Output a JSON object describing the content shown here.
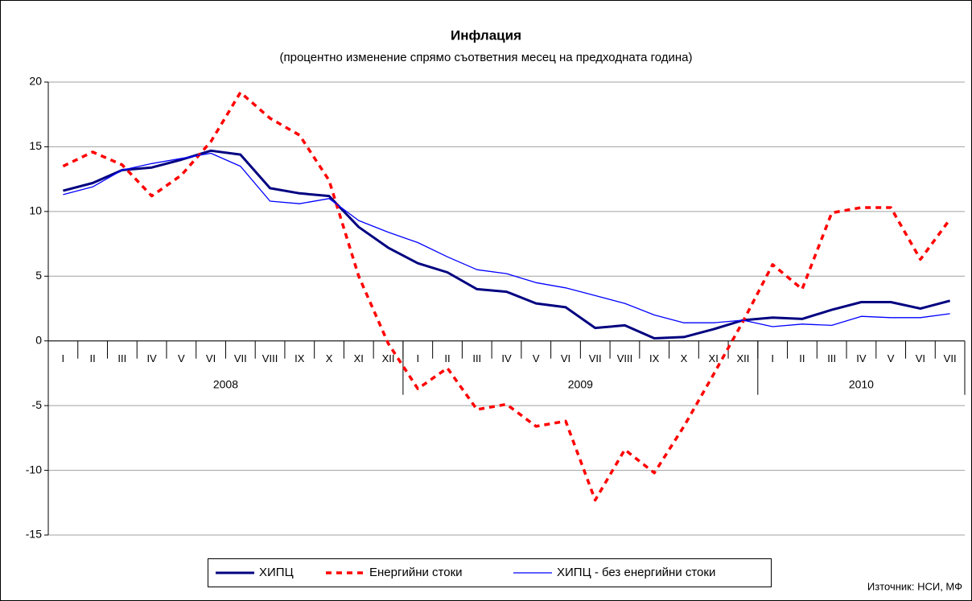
{
  "chart_data": {
    "type": "line",
    "title": "Инфлация",
    "subtitle": "(процентно изменение спрямо съответния месец на предходната година)",
    "source": "Източник: НСИ, МФ",
    "categories": [
      "I",
      "II",
      "III",
      "IV",
      "V",
      "VI",
      "VII",
      "VIII",
      "IX",
      "X",
      "XI",
      "XII",
      "I",
      "II",
      "III",
      "IV",
      "V",
      "VI",
      "VII",
      "VIII",
      "IX",
      "X",
      "XI",
      "XII",
      "I",
      "II",
      "III",
      "IV",
      "V",
      "VI",
      "VII"
    ],
    "groups": [
      {
        "name": "2008",
        "span": 12
      },
      {
        "name": "2009",
        "span": 12
      },
      {
        "name": "2010",
        "span": 7
      }
    ],
    "series": [
      {
        "name": "ХИПЦ",
        "color": "#000080",
        "style": "solid-thick",
        "values": [
          11.6,
          12.2,
          13.2,
          13.4,
          14.0,
          14.7,
          14.4,
          11.8,
          11.4,
          11.2,
          8.8,
          7.2,
          6.0,
          5.3,
          4.0,
          3.8,
          2.9,
          2.6,
          1.0,
          1.2,
          0.2,
          0.3,
          0.9,
          1.6,
          1.8,
          1.7,
          2.4,
          3.0,
          3.0,
          2.5,
          3.1
        ]
      },
      {
        "name": "Енергийни стоки",
        "color": "#ff0000",
        "style": "dashed",
        "values": [
          13.5,
          14.6,
          13.6,
          11.2,
          12.8,
          15.4,
          19.2,
          17.2,
          15.9,
          12.4,
          5.0,
          -0.2,
          -3.7,
          -2.1,
          -5.3,
          -4.9,
          -6.6,
          -6.2,
          -12.3,
          -8.4,
          -10.2,
          -6.6,
          -2.6,
          1.5,
          5.9,
          4.0,
          9.9,
          10.3,
          10.3,
          6.3,
          9.4
        ]
      },
      {
        "name": "ХИПЦ - без енергийни стоки",
        "color": "#0000ff",
        "style": "solid-thin",
        "values": [
          11.3,
          11.9,
          13.2,
          13.7,
          14.1,
          14.5,
          13.5,
          10.8,
          10.6,
          11.0,
          9.3,
          8.4,
          7.6,
          6.5,
          5.5,
          5.2,
          4.5,
          4.1,
          3.5,
          2.9,
          2.0,
          1.4,
          1.4,
          1.6,
          1.1,
          1.3,
          1.2,
          1.9,
          1.8,
          1.8,
          2.1
        ]
      }
    ],
    "ylim": [
      -15,
      20
    ],
    "yticks": [
      -15,
      -10,
      -5,
      0,
      5,
      10,
      15,
      20
    ],
    "grid": true,
    "legend": "bottom"
  }
}
